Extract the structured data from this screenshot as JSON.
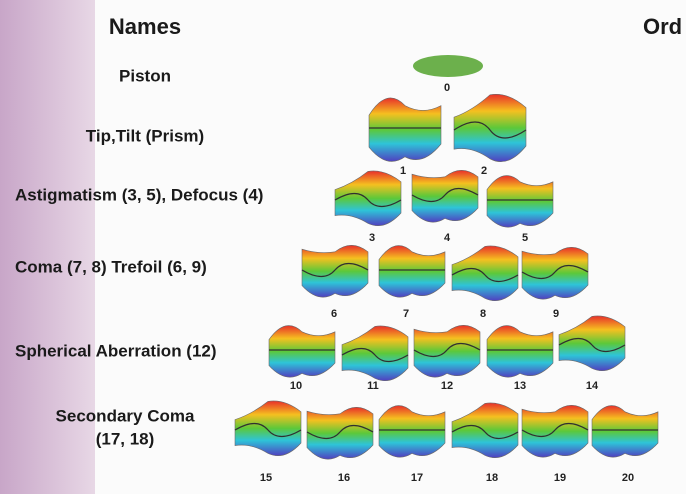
{
  "header": {
    "names": "Names",
    "order": "Ord"
  },
  "rows": [
    {
      "label": [
        "Piston"
      ],
      "indices": [
        "0"
      ]
    },
    {
      "label": [
        "Tip,Tilt (Prism)"
      ],
      "indices": [
        "1",
        "2"
      ]
    },
    {
      "label": [
        "Astigmatism (3, 5), Defocus (4)"
      ],
      "indices": [
        "3",
        "4",
        "5"
      ]
    },
    {
      "label": [
        "Coma (7, 8) Trefoil (6, 9)"
      ],
      "indices": [
        "6",
        "7",
        "8",
        "9"
      ]
    },
    {
      "label": [
        "Spherical Aberration (12)"
      ],
      "indices": [
        "10",
        "11",
        "12",
        "13",
        "14"
      ]
    },
    {
      "label": [
        "Secondary Coma",
        "(17, 18)"
      ],
      "indices": [
        "15",
        "16",
        "17",
        "18",
        "19",
        "20"
      ]
    }
  ]
}
